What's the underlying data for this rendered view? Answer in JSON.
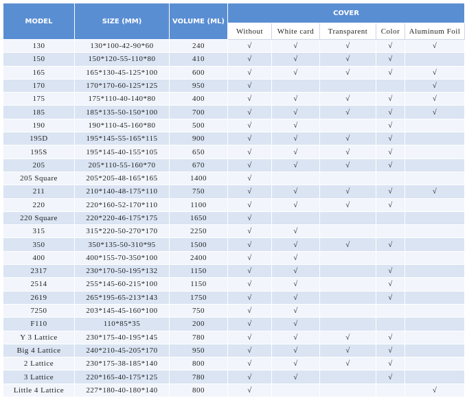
{
  "header": {
    "model": "MODEL",
    "size": "SIZE (MM)",
    "volume": "VOLUME (ML)",
    "cover": "COVER",
    "cover_columns": [
      "Without",
      "White card",
      "Transparent",
      "Color",
      "Aluminum Foil"
    ]
  },
  "table": {
    "rows": [
      [
        "130",
        "130*100-42-90*60",
        "240",
        "√",
        "√",
        "√",
        "√",
        "√"
      ],
      [
        "150",
        "150*120-55-110*80",
        "410",
        "√",
        "√",
        "√",
        "√",
        null
      ],
      [
        "165",
        "165*130-45-125*100",
        "600",
        "√",
        "√",
        "√",
        "√",
        "√"
      ],
      [
        "170",
        "170*170-60-125*125",
        "950",
        "√",
        null,
        null,
        null,
        "√"
      ],
      [
        "175",
        "175*110-40-140*80",
        "400",
        "√",
        "√",
        "√",
        "√",
        "√"
      ],
      [
        "185",
        "185*135-50-150*100",
        "700",
        "√",
        "√",
        "√",
        "√",
        "√"
      ],
      [
        "190",
        "190*110-45-160*80",
        "500",
        "√",
        "√",
        null,
        "√",
        null
      ],
      [
        "195D",
        "195*145-55-165*115",
        "900",
        "√",
        "√",
        "√",
        "√",
        null
      ],
      [
        "195S",
        "195*145-40-155*105",
        "650",
        "√",
        "√",
        "√",
        "√",
        null
      ],
      [
        "205",
        "205*110-55-160*70",
        "670",
        "√",
        "√",
        "√",
        "√",
        null
      ],
      [
        "205 Square",
        "205*205-48-165*165",
        "1400",
        "√",
        null,
        null,
        null,
        null
      ],
      [
        "211",
        "210*140-48-175*110",
        "750",
        "√",
        "√",
        "√",
        "√",
        "√"
      ],
      [
        "220",
        "220*160-52-170*110",
        "1100",
        "√",
        "√",
        "√",
        "√",
        null
      ],
      [
        "220 Square",
        "220*220-46-175*175",
        "1650",
        "√",
        null,
        null,
        null,
        null
      ],
      [
        "315",
        "315*220-50-270*170",
        "2250",
        "√",
        "√",
        null,
        null,
        null
      ],
      [
        "350",
        "350*135-50-310*95",
        "1500",
        "√",
        "√",
        "√",
        "√",
        null
      ],
      [
        "400",
        "400*155-70-350*100",
        "2400",
        "√",
        "√",
        null,
        null,
        null
      ],
      [
        "2317",
        "230*170-50-195*132",
        "1150",
        "√",
        "√",
        null,
        "√",
        null
      ],
      [
        "2514",
        "255*145-60-215*100",
        "1150",
        "√",
        "√",
        null,
        "√",
        null
      ],
      [
        "2619",
        "265*195-65-213*143",
        "1750",
        "√",
        "√",
        null,
        "√",
        null
      ],
      [
        "7250",
        "203*145-45-160*100",
        "750",
        "√",
        "√",
        null,
        null,
        null
      ],
      [
        "F110",
        "110*85*35",
        "200",
        "√",
        "√",
        null,
        null,
        null
      ],
      [
        "Y 3 Lattice",
        "230*175-40-195*145",
        "780",
        "√",
        "√",
        "√",
        "√",
        null
      ],
      [
        "Big 4 Lattice",
        "240*210-45-205*170",
        "950",
        "√",
        "√",
        "√",
        "√",
        null
      ],
      [
        "2 Lattice",
        "230*175-38-185*140",
        "800",
        "√",
        "√",
        "√",
        "√",
        null
      ],
      [
        "3 Lattice",
        "220*165-40-175*125",
        "780",
        "√",
        "√",
        null,
        "√",
        null
      ],
      [
        "Little 4 Lattice",
        "227*180-40-180*140",
        "800",
        "√",
        null,
        null,
        null,
        "√"
      ]
    ]
  }
}
